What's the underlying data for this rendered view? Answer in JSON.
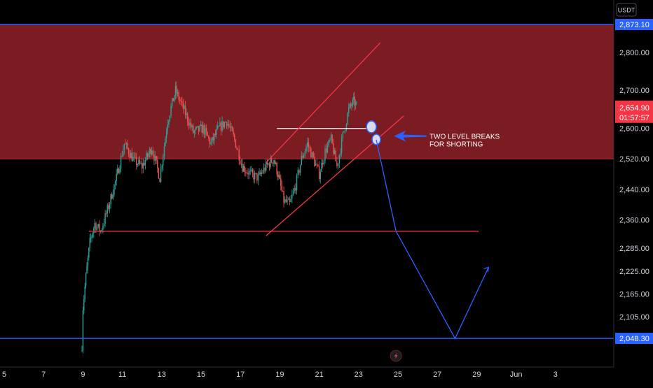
{
  "currency_label": "USDT",
  "colors": {
    "background": "#000000",
    "zone_fill": "#7a1c22",
    "zone_border": "#b02a33",
    "blue_line": "#2962ff",
    "bull": "#26a69a",
    "bear": "#ef5350",
    "channel": "#f23645",
    "axis_text": "#d1d4dc",
    "price_badge": "#f23645",
    "level_badge": "#2962ff"
  },
  "chart_data": {
    "type": "candlestick",
    "title": "",
    "x_tick_labels": [
      "5",
      "7",
      "9",
      "11",
      "13",
      "15",
      "17",
      "19",
      "21",
      "23",
      "25",
      "27",
      "29",
      "Jun",
      "3"
    ],
    "y_tick_labels": [
      "2,800.00",
      "2,700.00",
      "2,600.00",
      "2,520.00",
      "2,440.00",
      "2,360.00",
      "2,285.00",
      "2,225.00",
      "2,165.00",
      "2,105.00"
    ],
    "y_tick_values": [
      2800,
      2700,
      2600,
      2520,
      2440,
      2360,
      2285,
      2225,
      2165,
      2105
    ],
    "current_price": {
      "value": 2654.9,
      "label": "2,654.90",
      "countdown": "01:57:57"
    },
    "levels": [
      {
        "name": "upper-level",
        "value": 2873.1,
        "label": "2,873.10"
      },
      {
        "name": "lower-level",
        "value": 2048.3,
        "label": "2,048.30"
      }
    ],
    "supply_zone": {
      "top": 2873.1,
      "bottom": 2520
    },
    "support_line": 2330,
    "break_level": 2600,
    "annotation": {
      "line1": "TWO LEVEL BREAKS",
      "line2": "FOR SHORTING"
    },
    "price_path": [
      {
        "x": 8.95,
        "y": 2030
      },
      {
        "x": 9.0,
        "y": 2130
      },
      {
        "x": 9.15,
        "y": 2210
      },
      {
        "x": 9.35,
        "y": 2300
      },
      {
        "x": 9.6,
        "y": 2350
      },
      {
        "x": 9.9,
        "y": 2330
      },
      {
        "x": 10.3,
        "y": 2395
      },
      {
        "x": 10.7,
        "y": 2470
      },
      {
        "x": 11.1,
        "y": 2560
      },
      {
        "x": 11.6,
        "y": 2515
      },
      {
        "x": 12.0,
        "y": 2500
      },
      {
        "x": 12.5,
        "y": 2550
      },
      {
        "x": 12.9,
        "y": 2470
      },
      {
        "x": 13.3,
        "y": 2620
      },
      {
        "x": 13.7,
        "y": 2700
      },
      {
        "x": 14.2,
        "y": 2640
      },
      {
        "x": 14.6,
        "y": 2590
      },
      {
        "x": 15.1,
        "y": 2600
      },
      {
        "x": 15.5,
        "y": 2560
      },
      {
        "x": 15.9,
        "y": 2600
      },
      {
        "x": 16.3,
        "y": 2620
      },
      {
        "x": 16.7,
        "y": 2570
      },
      {
        "x": 17.1,
        "y": 2500
      },
      {
        "x": 17.5,
        "y": 2480
      },
      {
        "x": 17.9,
        "y": 2470
      },
      {
        "x": 18.3,
        "y": 2500
      },
      {
        "x": 18.7,
        "y": 2520
      },
      {
        "x": 18.95,
        "y": 2470
      },
      {
        "x": 19.2,
        "y": 2410
      },
      {
        "x": 19.5,
        "y": 2400
      },
      {
        "x": 19.8,
        "y": 2450
      },
      {
        "x": 20.1,
        "y": 2520
      },
      {
        "x": 20.4,
        "y": 2560
      },
      {
        "x": 20.7,
        "y": 2520
      },
      {
        "x": 21.0,
        "y": 2480
      },
      {
        "x": 21.3,
        "y": 2540
      },
      {
        "x": 21.6,
        "y": 2570
      },
      {
        "x": 21.9,
        "y": 2500
      },
      {
        "x": 22.2,
        "y": 2580
      },
      {
        "x": 22.5,
        "y": 2650
      },
      {
        "x": 22.75,
        "y": 2670
      },
      {
        "x": 22.95,
        "y": 2655
      }
    ],
    "projection": [
      {
        "x": 23.9,
        "y": 2570
      },
      {
        "x": 24.9,
        "y": 2330
      },
      {
        "x": 27.9,
        "y": 2048.3
      },
      {
        "x": 29.6,
        "y": 2235
      }
    ]
  }
}
